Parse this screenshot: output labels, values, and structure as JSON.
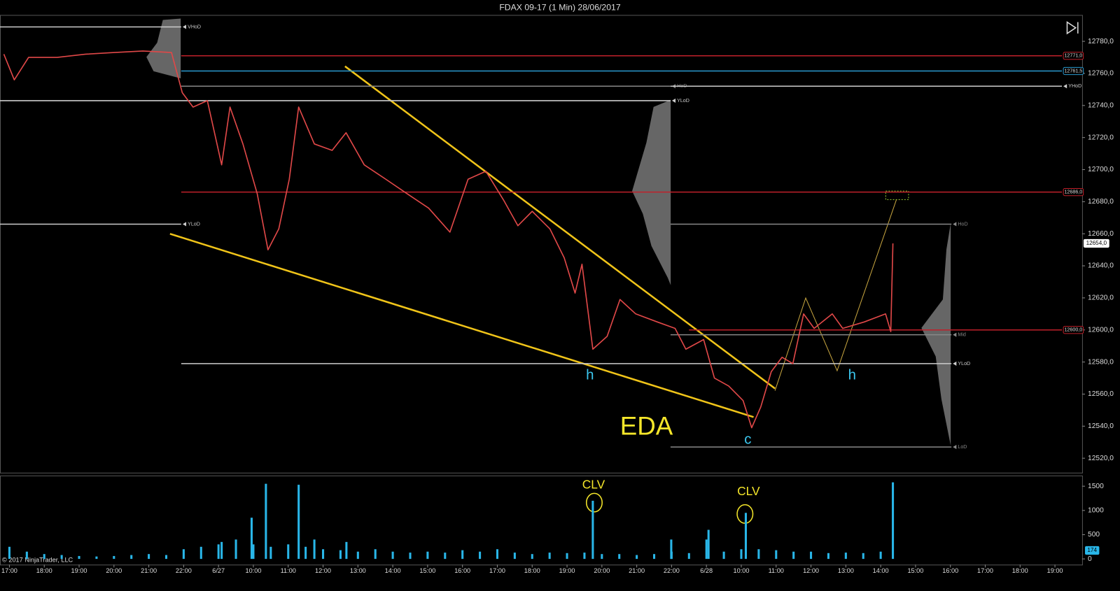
{
  "chart_data": [
    {
      "type": "line",
      "title": "FDAX 09-17 (1 Min)  28/06/2017",
      "x": [
        -0.16,
        0.14,
        0.55,
        1.37,
        2.19,
        3.01,
        3.83,
        4.65,
        4.96,
        5.27,
        5.68,
        6.09,
        6.33,
        6.7,
        7.11,
        7.42,
        7.73,
        8.03,
        8.3,
        8.75,
        9.26,
        9.66,
        10.18,
        10.8,
        11.41,
        12.03,
        12.64,
        13.16,
        13.67,
        14.18,
        14.59,
        15.0,
        15.51,
        15.92,
        16.23,
        16.43,
        16.74,
        17.15,
        17.52,
        17.97,
        18.59,
        19.1,
        19.41,
        19.92,
        20.23,
        20.64,
        21.05,
        21.3,
        21.56,
        21.86,
        22.17,
        22.48,
        22.79,
        23.09,
        23.61,
        23.91,
        24.53,
        25.14,
        25.29,
        25.35
      ],
      "values": [
        12772,
        12756,
        12770,
        12770,
        12772,
        12773,
        12774,
        12773,
        12748,
        12739,
        12743,
        12703,
        12739,
        12716,
        12685,
        12650,
        12663,
        12694,
        12739,
        12716,
        12712,
        12723,
        12703,
        12694,
        12685,
        12676,
        12661,
        12694,
        12699,
        12681,
        12665,
        12674,
        12663,
        12645,
        12623,
        12641,
        12588,
        12596,
        12619,
        12610,
        12605,
        12601,
        12588,
        12594,
        12570,
        12565,
        12556,
        12539,
        12552,
        12574,
        12583,
        12579,
        12610,
        12601,
        12610,
        12601,
        12605,
        12610,
        12599,
        12654
      ],
      "color": "#e04848",
      "xlim": [
        -0.27,
        30.78
      ],
      "xticks": [
        {
          "value": 0,
          "label": "17:00"
        },
        {
          "value": 1,
          "label": "18:00"
        },
        {
          "value": 2,
          "label": "19:00"
        },
        {
          "value": 3,
          "label": "20:00"
        },
        {
          "value": 4,
          "label": "21:00"
        },
        {
          "value": 5,
          "label": "22:00"
        },
        {
          "value": 6,
          "label": "6/27"
        },
        {
          "value": 7,
          "label": "10:00"
        },
        {
          "value": 8,
          "label": "11:00"
        },
        {
          "value": 9,
          "label": "12:00"
        },
        {
          "value": 10,
          "label": "13:00"
        },
        {
          "value": 11,
          "label": "14:00"
        },
        {
          "value": 12,
          "label": "15:00"
        },
        {
          "value": 13,
          "label": "16:00"
        },
        {
          "value": 14,
          "label": "17:00"
        },
        {
          "value": 15,
          "label": "18:00"
        },
        {
          "value": 16,
          "label": "19:00"
        },
        {
          "value": 17,
          "label": "20:00"
        },
        {
          "value": 18,
          "label": "21:00"
        },
        {
          "value": 19,
          "label": "22:00"
        },
        {
          "value": 20,
          "label": "6/28"
        },
        {
          "value": 21,
          "label": "10:00"
        },
        {
          "value": 22,
          "label": "11:00"
        },
        {
          "value": 23,
          "label": "12:00"
        },
        {
          "value": 24,
          "label": "13:00"
        },
        {
          "value": 25,
          "label": "14:00"
        },
        {
          "value": 26,
          "label": "15:00"
        },
        {
          "value": 27,
          "label": "16:00"
        },
        {
          "value": 28,
          "label": "17:00"
        },
        {
          "value": 29,
          "label": "18:00"
        },
        {
          "value": 30,
          "label": "19:00"
        }
      ],
      "ylim": [
        12511,
        12796
      ],
      "yticks": [
        {
          "value": 12520,
          "label": "12520,0"
        },
        {
          "value": 12540,
          "label": "12540,0"
        },
        {
          "value": 12560,
          "label": "12560,0"
        },
        {
          "value": 12580,
          "label": "12580,0"
        },
        {
          "value": 12600,
          "label": "12600,0"
        },
        {
          "value": 12620,
          "label": "12620,0"
        },
        {
          "value": 12640,
          "label": "12640,0"
        },
        {
          "value": 12660,
          "label": "12660,0"
        },
        {
          "value": 12680,
          "label": "12680,0"
        },
        {
          "value": 12700,
          "label": "12700,0"
        },
        {
          "value": 12720,
          "label": "12720,0"
        },
        {
          "value": 12740,
          "label": "12740,0"
        },
        {
          "value": 12760,
          "label": "12760,0"
        },
        {
          "value": 12780,
          "label": "12780,0"
        }
      ],
      "price_levels": [
        {
          "value": 12771,
          "label": "12771,0",
          "color": "#c0202a",
          "from": 4.93,
          "to": 30.2
        },
        {
          "value": 12761.5,
          "label": "12761,5",
          "color": "#2a9ad0",
          "from": 4.93,
          "to": 30.2
        },
        {
          "value": 12686,
          "label": "12686,0",
          "color": "#c0202a",
          "from": 4.93,
          "to": 30.2
        },
        {
          "value": 12600,
          "label": "12600,0",
          "color": "#c0202a",
          "from": 19.5,
          "to": 30.2
        }
      ],
      "session_levels": [
        {
          "value": 12789,
          "label": "VHoD",
          "color": "#cccccc",
          "from": -0.27,
          "to": 4.93
        },
        {
          "value": 12666,
          "label": "YLoD",
          "color": "#cccccc",
          "from": -0.27,
          "to": 4.93
        },
        {
          "value": 12752,
          "label": "HoD",
          "color": "#888888",
          "from": 4.93,
          "to": 18.97
        },
        {
          "value": 12743,
          "label": "YLoD",
          "color": "#cccccc",
          "from": -0.27,
          "to": 18.97
        },
        {
          "value": 12752,
          "label": "YHoD",
          "color": "#cccccc",
          "from": 18.97,
          "to": 30.2
        },
        {
          "value": 12666,
          "label": "HoD",
          "color": "#888888",
          "from": 18.97,
          "to": 27.03
        },
        {
          "value": 12597,
          "label": "Mid",
          "color": "#888888",
          "from": 18.97,
          "to": 27.03
        },
        {
          "value": 12579,
          "label": "YLoD",
          "color": "#cccccc",
          "from": 4.93,
          "to": 27.03
        },
        {
          "value": 12527,
          "label": "LoD",
          "color": "#888888",
          "from": 18.97,
          "to": 27.03
        }
      ],
      "last_price": {
        "value": 12654,
        "label": "12654,0"
      },
      "annotations": [
        "EDA",
        "h",
        "h",
        "c"
      ]
    },
    {
      "type": "bar",
      "x": [
        0,
        0.5,
        1,
        1.5,
        2,
        2.5,
        3,
        3.5,
        4,
        4.5,
        5,
        5.5,
        6,
        6.09,
        6.5,
        6.95,
        7,
        7.36,
        7.5,
        8,
        8.3,
        8.5,
        8.75,
        9,
        9.5,
        9.67,
        10,
        10.5,
        11,
        11.5,
        12,
        12.5,
        13,
        13.5,
        14,
        14.5,
        15,
        15.5,
        16,
        16.5,
        16.74,
        17,
        17.5,
        18,
        18.5,
        18.99,
        19,
        19.5,
        20,
        20.06,
        20.5,
        21,
        21.13,
        21.5,
        22,
        22.5,
        23,
        23.5,
        24,
        24.5,
        25,
        25.35
      ],
      "values": [
        250,
        150,
        100,
        80,
        60,
        50,
        60,
        80,
        100,
        80,
        200,
        250,
        300,
        350,
        400,
        850,
        300,
        1550,
        250,
        300,
        1530,
        250,
        400,
        200,
        180,
        350,
        150,
        200,
        150,
        130,
        150,
        130,
        180,
        150,
        200,
        130,
        100,
        130,
        120,
        130,
        1200,
        100,
        100,
        80,
        100,
        400,
        150,
        120,
        400,
        600,
        150,
        200,
        950,
        200,
        180,
        150,
        150,
        120,
        130,
        120,
        150,
        1580
      ],
      "color": "#29b6e8",
      "xlim": [
        -0.27,
        30.78
      ],
      "ylim": [
        -118,
        1706
      ],
      "yticks": [
        0,
        500,
        1000,
        1500
      ],
      "last_value": 174,
      "annotations": [
        "CLV",
        "CLV"
      ]
    }
  ],
  "footer": "© 2017 NinjaTrader, LLC"
}
